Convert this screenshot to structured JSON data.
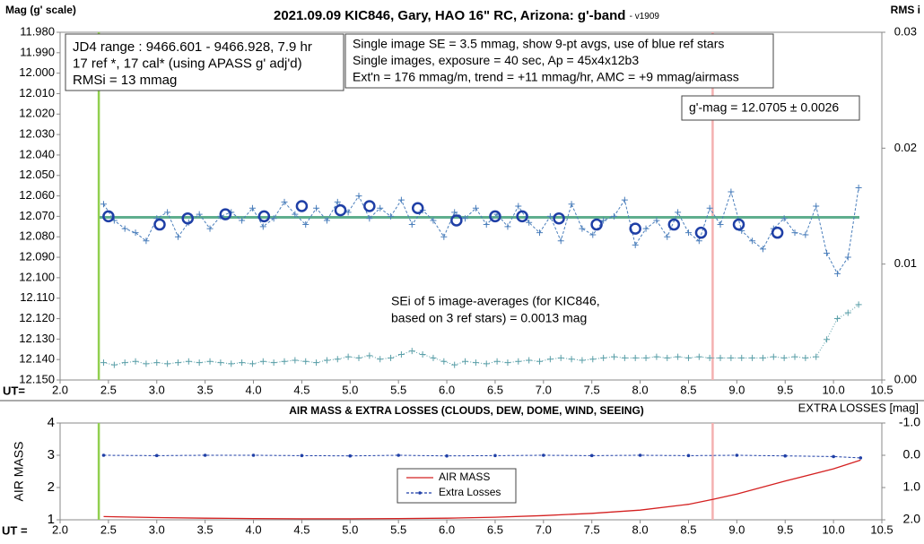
{
  "chart_data": [
    {
      "type": "scatter",
      "title": "2021.09.09 KIC846, Gary, HAO 16\" RC, Arizona: g'-band",
      "subtitle": "- v1909",
      "ylabel": "Mag (g' scale)",
      "y2label": "RMS i",
      "xlabel": "UT=",
      "xlim": [
        2,
        10.5
      ],
      "xticks": [
        {
          "value": 2,
          "label": "2.0"
        },
        2.5,
        {
          "value": 3,
          "label": "3.0"
        },
        3.5,
        {
          "value": 4,
          "label": "4.0"
        },
        4.5,
        {
          "value": 5,
          "label": "5.0"
        },
        5.5,
        {
          "value": 6,
          "label": "6.0"
        },
        6.5,
        {
          "value": 7,
          "label": "7.0"
        },
        7.5,
        {
          "value": 8,
          "label": "8.0"
        },
        8.5,
        {
          "value": 9,
          "label": "9.0"
        },
        9.5,
        {
          "value": 10,
          "label": "10.0"
        },
        10.5
      ],
      "ylim": [
        11.98,
        12.15
      ],
      "y_inverted": true,
      "yticks": [
        {
          "value": 11.98,
          "label": "11.980"
        },
        {
          "value": 11.99,
          "label": "11.990"
        },
        {
          "value": 12.0,
          "label": "12.000"
        },
        {
          "value": 12.01,
          "label": "12.010"
        },
        {
          "value": 12.02,
          "label": "12.020"
        },
        {
          "value": 12.03,
          "label": "12.030"
        },
        {
          "value": 12.04,
          "label": "12.040"
        },
        {
          "value": 12.05,
          "label": "12.050"
        },
        {
          "value": 12.06,
          "label": "12.060"
        },
        {
          "value": 12.07,
          "label": "12.070"
        },
        {
          "value": 12.08,
          "label": "12.080"
        },
        {
          "value": 12.09,
          "label": "12.090"
        },
        {
          "value": 12.1,
          "label": "12.100"
        },
        {
          "value": 12.11,
          "label": "12.110"
        },
        {
          "value": 12.12,
          "label": "12.120"
        },
        {
          "value": 12.13,
          "label": "12.130"
        },
        {
          "value": 12.14,
          "label": "12.140"
        },
        {
          "value": 12.15,
          "label": "12.150"
        }
      ],
      "y2lim": [
        0,
        0.03
      ],
      "y2ticks": [
        {
          "value": 0,
          "label": "0.00"
        },
        0.01,
        0.02,
        0.03
      ],
      "vlines": [
        {
          "x": 2.4,
          "color": "#92d050"
        },
        {
          "x": 8.75,
          "color": "#f4b0b0"
        }
      ],
      "hline": {
        "y": 12.0705,
        "color": "#5fae8e"
      },
      "series": [
        {
          "color": "#4a7ebb",
          "marker": "cross",
          "line": "dashed",
          "x": [
            2.45,
            2.56,
            2.67,
            2.78,
            2.89,
            3.0,
            3.11,
            3.22,
            3.33,
            3.44,
            3.55,
            3.66,
            3.77,
            3.88,
            3.99,
            4.1,
            4.21,
            4.32,
            4.43,
            4.54,
            4.65,
            4.76,
            4.87,
            4.98,
            5.09,
            5.2,
            5.31,
            5.42,
            5.53,
            5.64,
            5.75,
            5.86,
            5.97,
            6.08,
            6.19,
            6.3,
            6.41,
            6.52,
            6.63,
            6.74,
            6.85,
            6.96,
            7.07,
            7.18,
            7.29,
            7.4,
            7.51,
            7.62,
            7.73,
            7.84,
            7.95,
            8.06,
            8.17,
            8.28,
            8.39,
            8.5,
            8.61,
            8.72,
            8.83,
            8.94,
            9.05,
            9.16,
            9.27,
            9.38,
            9.49,
            9.6,
            9.71,
            9.82,
            9.93,
            10.04,
            10.15,
            10.26
          ],
          "values": [
            12.064,
            12.072,
            12.076,
            12.078,
            12.082,
            12.071,
            12.068,
            12.08,
            12.073,
            12.069,
            12.076,
            12.07,
            12.068,
            12.072,
            12.066,
            12.075,
            12.071,
            12.063,
            12.069,
            12.074,
            12.066,
            12.072,
            12.063,
            12.068,
            12.06,
            12.071,
            12.066,
            12.07,
            12.062,
            12.074,
            12.067,
            12.072,
            12.08,
            12.068,
            12.071,
            12.066,
            12.074,
            12.069,
            12.075,
            12.065,
            12.073,
            12.078,
            12.07,
            12.082,
            12.064,
            12.076,
            12.079,
            12.072,
            12.07,
            12.062,
            12.084,
            12.076,
            12.072,
            12.08,
            12.068,
            12.078,
            12.082,
            12.066,
            12.074,
            12.058,
            12.077,
            12.082,
            12.086,
            12.076,
            12.071,
            12.078,
            12.079,
            12.065,
            12.088,
            12.098,
            12.09,
            12.056
          ]
        },
        {
          "color": "#1f3fa6",
          "marker": "circle",
          "line": "none",
          "x": [
            2.5,
            3.03,
            3.32,
            3.71,
            4.11,
            4.5,
            4.9,
            5.2,
            5.7,
            6.1,
            6.5,
            6.78,
            7.16,
            7.55,
            7.95,
            8.35,
            8.63,
            9.02,
            9.42
          ],
          "values": [
            12.07,
            12.074,
            12.071,
            12.069,
            12.07,
            12.065,
            12.067,
            12.065,
            12.066,
            12.072,
            12.07,
            12.07,
            12.071,
            12.074,
            12.076,
            12.074,
            12.078,
            12.074,
            12.078
          ]
        },
        {
          "color": "#5a9fa8",
          "marker": "cross",
          "line": "dotted",
          "axis": "y2",
          "x": [
            2.45,
            2.56,
            2.67,
            2.78,
            2.89,
            3.0,
            3.11,
            3.22,
            3.33,
            3.44,
            3.55,
            3.66,
            3.77,
            3.88,
            3.99,
            4.1,
            4.21,
            4.32,
            4.43,
            4.54,
            4.65,
            4.76,
            4.87,
            4.98,
            5.09,
            5.2,
            5.31,
            5.42,
            5.53,
            5.64,
            5.75,
            5.86,
            5.97,
            6.08,
            6.19,
            6.3,
            6.41,
            6.52,
            6.63,
            6.74,
            6.85,
            6.96,
            7.07,
            7.18,
            7.29,
            7.4,
            7.51,
            7.62,
            7.73,
            7.84,
            7.95,
            8.06,
            8.17,
            8.28,
            8.39,
            8.5,
            8.61,
            8.72,
            8.83,
            8.94,
            9.05,
            9.16,
            9.27,
            9.38,
            9.49,
            9.6,
            9.71,
            9.82,
            9.93,
            10.04,
            10.15,
            10.26
          ],
          "values": [
            0.0015,
            0.0013,
            0.0015,
            0.0016,
            0.0014,
            0.0015,
            0.0014,
            0.0015,
            0.0016,
            0.0015,
            0.0016,
            0.0015,
            0.0014,
            0.0015,
            0.0014,
            0.0016,
            0.0015,
            0.0016,
            0.0017,
            0.0016,
            0.0015,
            0.0017,
            0.0018,
            0.002,
            0.0019,
            0.0021,
            0.0018,
            0.0019,
            0.0022,
            0.0025,
            0.0022,
            0.0019,
            0.0016,
            0.0013,
            0.0016,
            0.0015,
            0.0014,
            0.0016,
            0.0015,
            0.0016,
            0.0017,
            0.0016,
            0.0018,
            0.0019,
            0.0018,
            0.0017,
            0.0018,
            0.0019,
            0.002,
            0.0019,
            0.0019,
            0.0019,
            0.002,
            0.0019,
            0.002,
            0.0019,
            0.002,
            0.0019,
            0.0019,
            0.0019,
            0.0019,
            0.0019,
            0.0019,
            0.002,
            0.0019,
            0.002,
            0.0019,
            0.002,
            0.0035,
            0.0053,
            0.0058,
            0.0065
          ]
        }
      ],
      "annotations": [
        [
          "JD4 range : 9466.601 - 9466.928,  7.9  hr",
          "17 ref *, 17 cal* (using APASS g' adj'd)",
          "RMSi = 13 mmag"
        ],
        [
          "Single image SE = 3.5 mmag, show  9-pt avgs, use of blue ref stars",
          "Single images, exposure = 40 sec, Ap = 45x4x12b3",
          "Ext'n = 176 mmag/m, trend = +11 mmag/hr, AMC = +9 mmag/airmass"
        ],
        [
          "g'-mag = 12.0705 ± 0.0026"
        ],
        [
          "SEi of 5 image-averages (for KIC846,",
          "based on 3 ref stars) = 0.0013 mag"
        ]
      ]
    },
    {
      "type": "line",
      "title": "AIR MASS & EXTRA LOSSES (CLOUDS, DEW, DOME, WIND, SEEING)",
      "ylabel": "AIR MASS",
      "y2label": "EXTRA LOSSES [mag]",
      "xlabel": "UT =",
      "xlim": [
        2,
        10.5
      ],
      "xticks": [
        {
          "value": 2,
          "label": "2.0"
        },
        2.5,
        {
          "value": 3,
          "label": "3.0"
        },
        3.5,
        {
          "value": 4,
          "label": "4.0"
        },
        4.5,
        {
          "value": 5,
          "label": "5.0"
        },
        5.5,
        {
          "value": 6,
          "label": "6.0"
        },
        6.5,
        {
          "value": 7,
          "label": "7.0"
        },
        7.5,
        {
          "value": 8,
          "label": "8.0"
        },
        8.5,
        {
          "value": 9,
          "label": "9.0"
        },
        9.5,
        {
          "value": 10,
          "label": "10.0"
        },
        10.5
      ],
      "ylim": [
        1,
        4
      ],
      "yticks": [
        1,
        2,
        3,
        4
      ],
      "y2lim": [
        -1,
        2
      ],
      "y2_inverted": true,
      "y2ticks": [
        {
          "value": -1,
          "label": "-1.0"
        },
        {
          "value": 0,
          "label": "0.0"
        },
        {
          "value": 1,
          "label": "1.0"
        },
        {
          "value": 2,
          "label": "2.0"
        }
      ],
      "vlines": [
        {
          "x": 2.4,
          "color": "#92d050"
        },
        {
          "x": 8.75,
          "color": "#f4b0b0"
        }
      ],
      "series": [
        {
          "name": "AIR MASS",
          "color": "#d42020",
          "marker": "none",
          "line": "solid",
          "x": [
            2.45,
            3.0,
            3.5,
            4.0,
            4.5,
            5.0,
            5.5,
            6.0,
            6.5,
            7.0,
            7.5,
            8.0,
            8.5,
            8.75,
            9.0,
            9.5,
            10.0,
            10.28
          ],
          "values": [
            1.1,
            1.07,
            1.05,
            1.04,
            1.03,
            1.03,
            1.04,
            1.05,
            1.08,
            1.13,
            1.2,
            1.3,
            1.48,
            1.63,
            1.8,
            2.2,
            2.58,
            2.85
          ]
        },
        {
          "name": "Extra Losses",
          "color": "#1f3fa6",
          "marker": "dot",
          "line": "dashed",
          "axis": "y2",
          "x": [
            2.45,
            3.0,
            3.5,
            4.0,
            4.5,
            5.0,
            5.5,
            6.0,
            6.5,
            7.0,
            7.5,
            8.0,
            8.5,
            9.0,
            9.5,
            10.0,
            10.28
          ],
          "values": [
            0.0,
            0.01,
            0.0,
            0.0,
            0.01,
            0.02,
            0.0,
            0.02,
            0.01,
            0.0,
            0.01,
            0.0,
            0.01,
            0.0,
            0.02,
            0.04,
            0.08
          ]
        }
      ],
      "legend": "center"
    }
  ]
}
